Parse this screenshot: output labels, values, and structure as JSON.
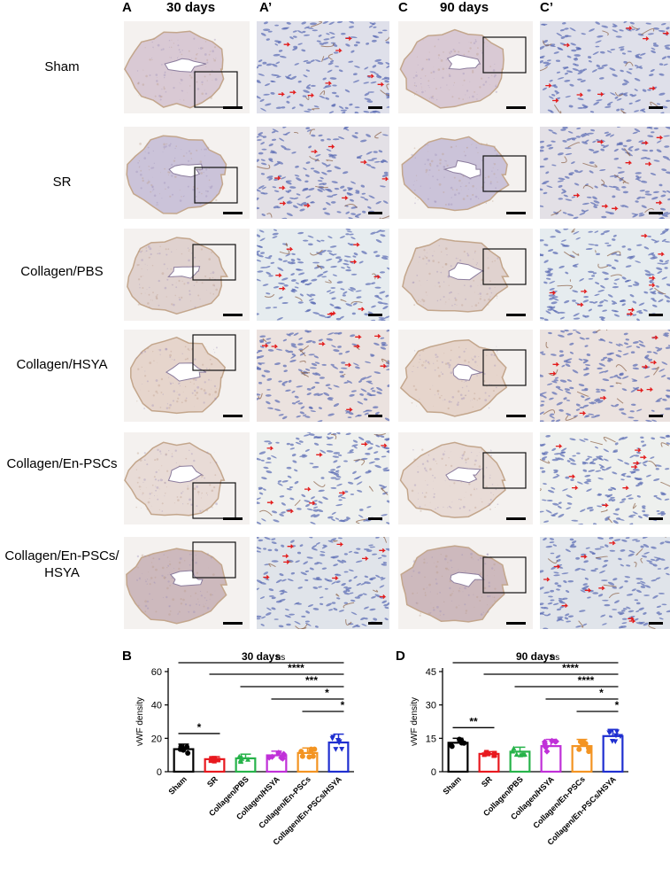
{
  "headers": {
    "A": "A",
    "A_title": "30  days",
    "A_prime": "A’",
    "C": "C",
    "C_title": "90  days",
    "C_prime": "C’"
  },
  "rows": [
    "Sham",
    "SR",
    "Collagen/PBS",
    "Collagen/HSYA",
    "Collagen/En-PSCs",
    "Collagen/En-PSCs/\nHSYA"
  ],
  "charts_panel": {
    "B": "B",
    "D": "D"
  },
  "colors": {
    "Sham": "#000000",
    "SR": "#e8191f",
    "Collagen/PBS": "#27b34a",
    "Collagen/HSYA": "#c030d8",
    "Collagen/En-PSCs": "#f39422",
    "Collagen/En-PSCs/HSYA": "#1f2fd0",
    "stain_pink": "#e9d3d6",
    "stain_brown": "#c9a58a",
    "nuclei_blue": "#5a6bb4"
  },
  "chart_data": [
    {
      "type": "bar",
      "title": "30 days",
      "ylabel": "vWF density",
      "ylim": [
        0,
        60
      ],
      "yticks": [
        0,
        20,
        40,
        60
      ],
      "categories": [
        "Sham",
        "SR",
        "Collagen/PBS",
        "Collagen/HSYA",
        "Collagen/En-PSCs",
        "Collagen/En-PSCs/HSYA"
      ],
      "values": [
        13.5,
        7.5,
        8.0,
        9.8,
        11.2,
        17.5
      ],
      "errors": [
        3.0,
        1.5,
        2.5,
        2.5,
        3.0,
        5.0
      ],
      "comparisons": [
        {
          "from": 0,
          "to": 1,
          "label": "*"
        },
        {
          "from": 0,
          "to": 5,
          "label": "ns"
        },
        {
          "from": 1,
          "to": 5,
          "label": "****"
        },
        {
          "from": 2,
          "to": 5,
          "label": "***"
        },
        {
          "from": 3,
          "to": 5,
          "label": "*"
        },
        {
          "from": 4,
          "to": 5,
          "label": "*"
        }
      ]
    },
    {
      "type": "bar",
      "title": "90 days",
      "ylabel": "vWF density",
      "ylim": [
        0,
        45
      ],
      "yticks": [
        0,
        15,
        30,
        45
      ],
      "categories": [
        "Sham",
        "SR",
        "Collagen/PBS",
        "Collagen/HSYA",
        "Collagen/En-PSCs",
        "Collagen/En-PSCs/HSYA"
      ],
      "values": [
        13.0,
        8.0,
        9.0,
        11.5,
        11.5,
        16.0
      ],
      "errors": [
        2.0,
        1.0,
        2.0,
        3.0,
        3.0,
        3.0
      ],
      "comparisons": [
        {
          "from": 0,
          "to": 1,
          "label": "**"
        },
        {
          "from": 0,
          "to": 5,
          "label": "ns"
        },
        {
          "from": 1,
          "to": 5,
          "label": "****"
        },
        {
          "from": 2,
          "to": 5,
          "label": "****"
        },
        {
          "from": 3,
          "to": 5,
          "label": "*"
        },
        {
          "from": 4,
          "to": 5,
          "label": "*"
        }
      ]
    }
  ]
}
